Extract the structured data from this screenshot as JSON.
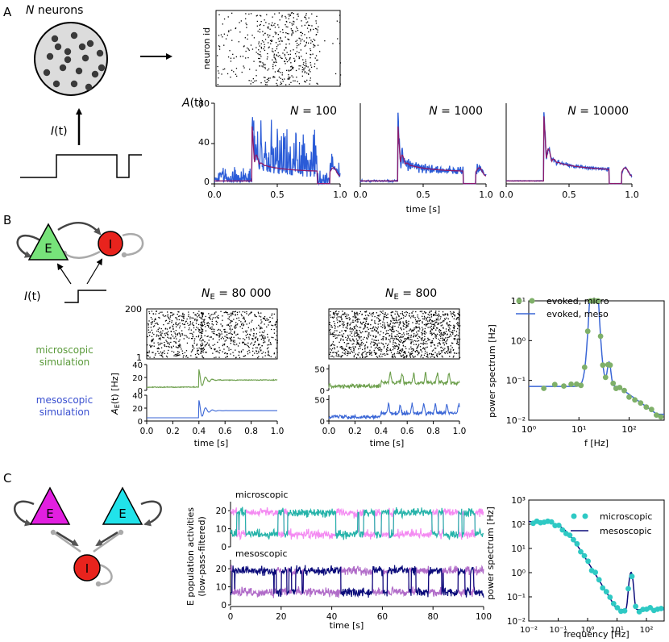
{
  "panels": {
    "a": {
      "letter": "A",
      "schematic": {
        "n_neurons_italic": "N",
        "n_neurons_text": " neurons",
        "input_label_italic": "I",
        "input_label_rest": "(t)"
      },
      "raster": {
        "ylabel": "neuron id"
      },
      "activity_ylabel_italic": "A",
      "activity_ylabel_rest": "(t)",
      "xlabel": "time [s]",
      "subplots": [
        {
          "n_italic": "N",
          "n_value": " = 100"
        },
        {
          "n_italic": "N",
          "n_value": " = 1000"
        },
        {
          "n_italic": "N",
          "n_value": " = 10000"
        }
      ],
      "colors": {
        "micro": "#2a5bd7",
        "meso": "#8b1a6b"
      }
    },
    "b": {
      "letter": "B",
      "schematic": {
        "e_label": "E",
        "i_label": "I",
        "input_label_italic": "I",
        "input_label_rest": "(t)",
        "colors": {
          "e": "#77e37a",
          "i": "#e8231d"
        }
      },
      "micro_label_line1": "microscopic",
      "micro_label_line2": "simulation",
      "meso_label_line1": "mesoscopic",
      "meso_label_line2": "simulation",
      "ae_label_italic": "A",
      "ae_label_sub": "E",
      "ae_label_rest": "(t) [Hz]",
      "xlabel": "time [s]",
      "sim_80000": {
        "title_italic": "N",
        "title_sub": "E",
        "title_value": " = 80 000"
      },
      "sim_800": {
        "title_italic": "N",
        "title_sub": "E",
        "title_value": " = 800"
      },
      "spectrum": {
        "ylabel": "power spectrum [Hz]",
        "xlabel": "f [Hz]",
        "legend_micro": "evoked, micro",
        "legend_meso": "evoked, meso"
      },
      "colors": {
        "micro": "#6b9e4a",
        "micro_dots": "#7fb069",
        "meso": "#3a66d6"
      }
    },
    "c": {
      "letter": "C",
      "schematic": {
        "e1_label": "E",
        "e2_label": "E",
        "i_label": "I",
        "colors": {
          "e1": "#e21fe0",
          "e2": "#21e3ea",
          "i": "#e8231d"
        }
      },
      "timeseries": {
        "ylabel_line1": "E population activities",
        "ylabel_line2": "(low-pass-filtered)",
        "micro_title": "microscopic",
        "meso_title": "mesoscopic",
        "xlabel": "time [s]"
      },
      "spectrum": {
        "ylabel": "power spectrum [Hz]",
        "xlabel": "frequency [Hz]",
        "legend_micro": "microscopic",
        "legend_meso": "mesoscopic"
      },
      "colors": {
        "micro_a": "#f48af2",
        "micro_b": "#26b3aa",
        "meso_a": "#0b0b7a",
        "meso_b": "#b06bc8",
        "spec_dots": "#2ec9c4",
        "spec_line": "#0b0b7a"
      }
    }
  },
  "chart_data": [
    {
      "type": "line",
      "panel": "A",
      "x_ticks": [
        "0.0",
        "0.5",
        "1.0"
      ],
      "y_ticks": [
        "0",
        "40",
        "80"
      ],
      "ylim": [
        0,
        80
      ],
      "xlim": [
        0,
        1
      ],
      "series_count": 3
    },
    {
      "type": "line",
      "panel": "B",
      "raster_y_ticks": [
        "1",
        "200"
      ],
      "ae_y_ticks_80000": [
        "0",
        "20",
        "40"
      ],
      "ae_y_ticks_800": [
        "0",
        "50"
      ],
      "x_ticks": [
        "0.0",
        "0.2",
        "0.4",
        "0.6",
        "0.8",
        "1.0"
      ],
      "xlim": [
        0,
        1
      ]
    },
    {
      "type": "scatter",
      "panel": "B-spectrum",
      "x_ticks": [
        "10⁰",
        "10¹",
        "10²"
      ],
      "y_ticks": [
        "10⁻²",
        "10⁻¹",
        "10⁰",
        "10¹"
      ],
      "xlim": [
        1,
        500
      ],
      "ylim": [
        0.01,
        10
      ],
      "log_x": true,
      "log_y": true,
      "peak_hz": 20,
      "peak_power": 4.5
    },
    {
      "type": "line",
      "panel": "C-timeseries",
      "x_ticks": [
        "0",
        "20",
        "40",
        "60",
        "80",
        "100"
      ],
      "y_ticks": [
        "0",
        "10",
        "20"
      ],
      "xlim": [
        0,
        100
      ]
    },
    {
      "type": "scatter",
      "panel": "C-spectrum",
      "x_ticks": [
        "10⁻²",
        "10⁻¹",
        "10⁰",
        "10¹",
        "10²"
      ],
      "y_ticks": [
        "10⁻²",
        "10⁻¹",
        "10⁰",
        "10¹",
        "10²",
        "10³"
      ],
      "xlim": [
        0.01,
        400
      ],
      "ylim": [
        0.01,
        1000
      ],
      "log_x": true,
      "log_y": true
    }
  ]
}
